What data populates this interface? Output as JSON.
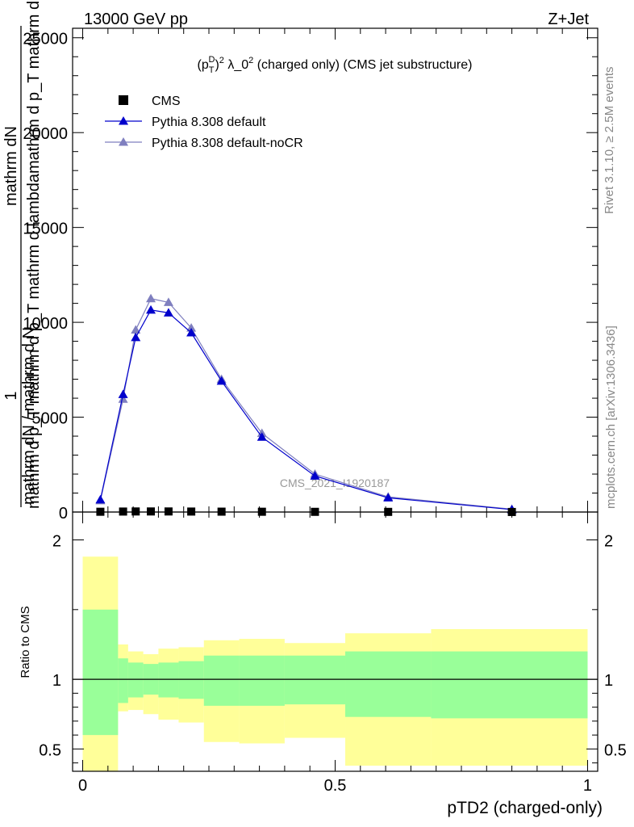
{
  "header": {
    "left": "13000 GeV pp",
    "right": "Z+Jet"
  },
  "side_labels": {
    "rivet": "Rivet 3.1.10, ≥ 2.5M events",
    "mcplots": "mcplots.cern.ch [arXiv:1306.3436]"
  },
  "watermark": "CMS_2021_I1920187",
  "chart_data": [
    {
      "type": "line",
      "title": "(p_T^D)^2 λ_0^2 (charged only) (CMS jet substructure)",
      "title_parts": {
        "p": "(p",
        "sub": "T",
        "sup": "D",
        "close": ")",
        "sup2": "2",
        "lambda": " λ_0",
        "sup3": "2",
        "rest": " (charged only) (CMS jet substructure)"
      },
      "ylabel_top": "1",
      "ylabel_lines": [
        "mathrm dN",
        "mathrm d p_T mathrm d lambda",
        "mathrm d p_T mathrm d p_T mathrm d lambda",
        "mathrm dN / mathrm d N"
      ],
      "ylim": [
        0,
        25500
      ],
      "xlim": [
        -0.02,
        1.02
      ],
      "yticks": [
        0,
        5000,
        10000,
        15000,
        20000,
        25000
      ],
      "ytick_labels": [
        "0",
        "5000",
        "10000",
        "15000",
        "20000",
        "25000"
      ],
      "legend_position": "top-left",
      "series": [
        {
          "name": "CMS",
          "color": "#000000",
          "marker": "square",
          "x": [
            0.035,
            0.08,
            0.105,
            0.135,
            0.17,
            0.215,
            0.275,
            0.355,
            0.46,
            0.605,
            0.85
          ],
          "y": [
            15,
            25,
            30,
            30,
            30,
            25,
            20,
            15,
            10,
            8,
            3
          ]
        },
        {
          "name": "Pythia 8.308 default",
          "color": "#0000cc",
          "marker": "triangle",
          "x": [
            0.035,
            0.08,
            0.105,
            0.135,
            0.17,
            0.215,
            0.275,
            0.355,
            0.46,
            0.605,
            0.85
          ],
          "y": [
            650,
            6200,
            9200,
            10650,
            10500,
            9450,
            6900,
            3950,
            1900,
            750,
            130
          ]
        },
        {
          "name": "Pythia 8.308 default-noCR",
          "color": "#7f7fbf",
          "marker": "triangle",
          "x": [
            0.035,
            0.08,
            0.105,
            0.135,
            0.17,
            0.215,
            0.275,
            0.355,
            0.46,
            0.605,
            0.85
          ],
          "y": [
            600,
            5950,
            9600,
            11250,
            11050,
            9700,
            7000,
            4150,
            2000,
            800,
            150
          ]
        }
      ]
    },
    {
      "type": "area",
      "ylabel": "Ratio to CMS",
      "xlabel": "pTD2 (charged-only)",
      "xlim": [
        -0.02,
        1.02
      ],
      "ylim": [
        0.34,
        2.2
      ],
      "yticks": [
        0.5,
        1,
        2
      ],
      "ytick_labels": [
        "0.5",
        "1",
        "2"
      ],
      "xticks": [
        0,
        0.5,
        1
      ],
      "xtick_labels": [
        "0",
        "0.5",
        "1"
      ],
      "reference_line": 1,
      "bins": [
        0,
        0.07,
        0.09,
        0.12,
        0.15,
        0.19,
        0.24,
        0.31,
        0.4,
        0.52,
        0.69,
        1.0
      ],
      "band_outer": {
        "color": "#ffff99",
        "upper": [
          1.88,
          1.25,
          1.2,
          1.18,
          1.22,
          1.23,
          1.28,
          1.29,
          1.26,
          1.33,
          1.36
        ],
        "lower": [
          0.34,
          0.77,
          0.78,
          0.75,
          0.71,
          0.69,
          0.55,
          0.54,
          0.58,
          0.38,
          0.38
        ]
      },
      "band_inner": {
        "color": "#99ff99",
        "upper": [
          1.5,
          1.15,
          1.12,
          1.11,
          1.12,
          1.13,
          1.17,
          1.17,
          1.17,
          1.2,
          1.2
        ],
        "lower": [
          0.6,
          0.83,
          0.87,
          0.89,
          0.87,
          0.86,
          0.81,
          0.81,
          0.82,
          0.73,
          0.72
        ]
      }
    }
  ]
}
